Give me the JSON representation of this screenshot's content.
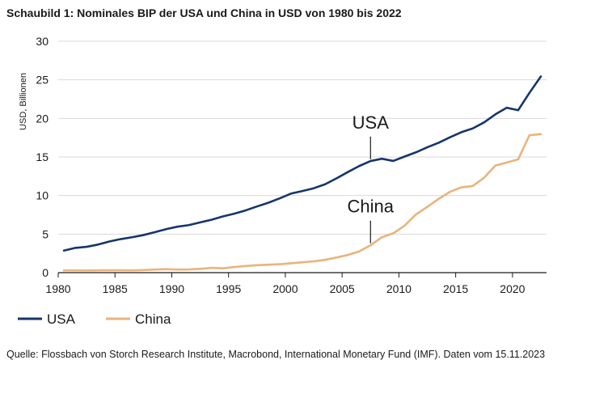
{
  "colors": {
    "usa": "#16366b",
    "china": "#e8b47c",
    "grid": "#d9d9d9",
    "axis": "#1a1a1a"
  },
  "chart_data": {
    "type": "line",
    "title": "Schaubild 1: Nominales BIP der USA und China in USD von 1980 bis 2022",
    "ylabel": "USD, Billionen",
    "xlabel": "",
    "xlim": [
      1980,
      2023
    ],
    "ylim": [
      0,
      30
    ],
    "grid": true,
    "x_ticks": [
      1980,
      1985,
      1990,
      1995,
      2000,
      2005,
      2010,
      2015,
      2020
    ],
    "y_ticks": [
      0,
      5,
      10,
      15,
      20,
      25,
      30
    ],
    "legend_position": "bottom-left",
    "x": [
      1980,
      1981,
      1982,
      1983,
      1984,
      1985,
      1986,
      1987,
      1988,
      1989,
      1990,
      1991,
      1992,
      1993,
      1994,
      1995,
      1996,
      1997,
      1998,
      1999,
      2000,
      2001,
      2002,
      2003,
      2004,
      2005,
      2006,
      2007,
      2008,
      2009,
      2010,
      2011,
      2012,
      2013,
      2014,
      2015,
      2016,
      2017,
      2018,
      2019,
      2020,
      2021,
      2022
    ],
    "series": [
      {
        "name": "USA",
        "color_key": "usa",
        "values": [
          2.86,
          3.21,
          3.35,
          3.64,
          4.04,
          4.35,
          4.59,
          4.87,
          5.24,
          5.64,
          5.96,
          6.16,
          6.52,
          6.86,
          7.29,
          7.64,
          8.07,
          8.58,
          9.06,
          9.63,
          10.25,
          10.58,
          10.94,
          11.46,
          12.22,
          13.04,
          13.82,
          14.47,
          14.77,
          14.48,
          15.05,
          15.6,
          16.25,
          16.84,
          17.55,
          18.21,
          18.7,
          19.48,
          20.53,
          21.38,
          21.06,
          23.32,
          25.44
        ]
      },
      {
        "name": "China",
        "color_key": "china",
        "values": [
          0.3,
          0.29,
          0.28,
          0.3,
          0.31,
          0.31,
          0.3,
          0.33,
          0.4,
          0.45,
          0.4,
          0.41,
          0.49,
          0.62,
          0.56,
          0.73,
          0.86,
          0.96,
          1.03,
          1.09,
          1.21,
          1.34,
          1.47,
          1.66,
          1.96,
          2.29,
          2.75,
          3.55,
          4.59,
          5.1,
          6.09,
          7.55,
          8.53,
          9.57,
          10.48,
          11.06,
          11.23,
          12.31,
          13.89,
          14.28,
          14.69,
          17.82,
          17.96
        ]
      }
    ],
    "annotations": [
      {
        "text": "USA",
        "x": 2007.5,
        "y": 14.5
      },
      {
        "text": "China",
        "x": 2007.5,
        "y": 3.6
      }
    ]
  },
  "source": "Quelle: Flossbach von Storch Research Institute, Macrobond, International Monetary Fund (IMF). Daten vom 15.11.2023"
}
